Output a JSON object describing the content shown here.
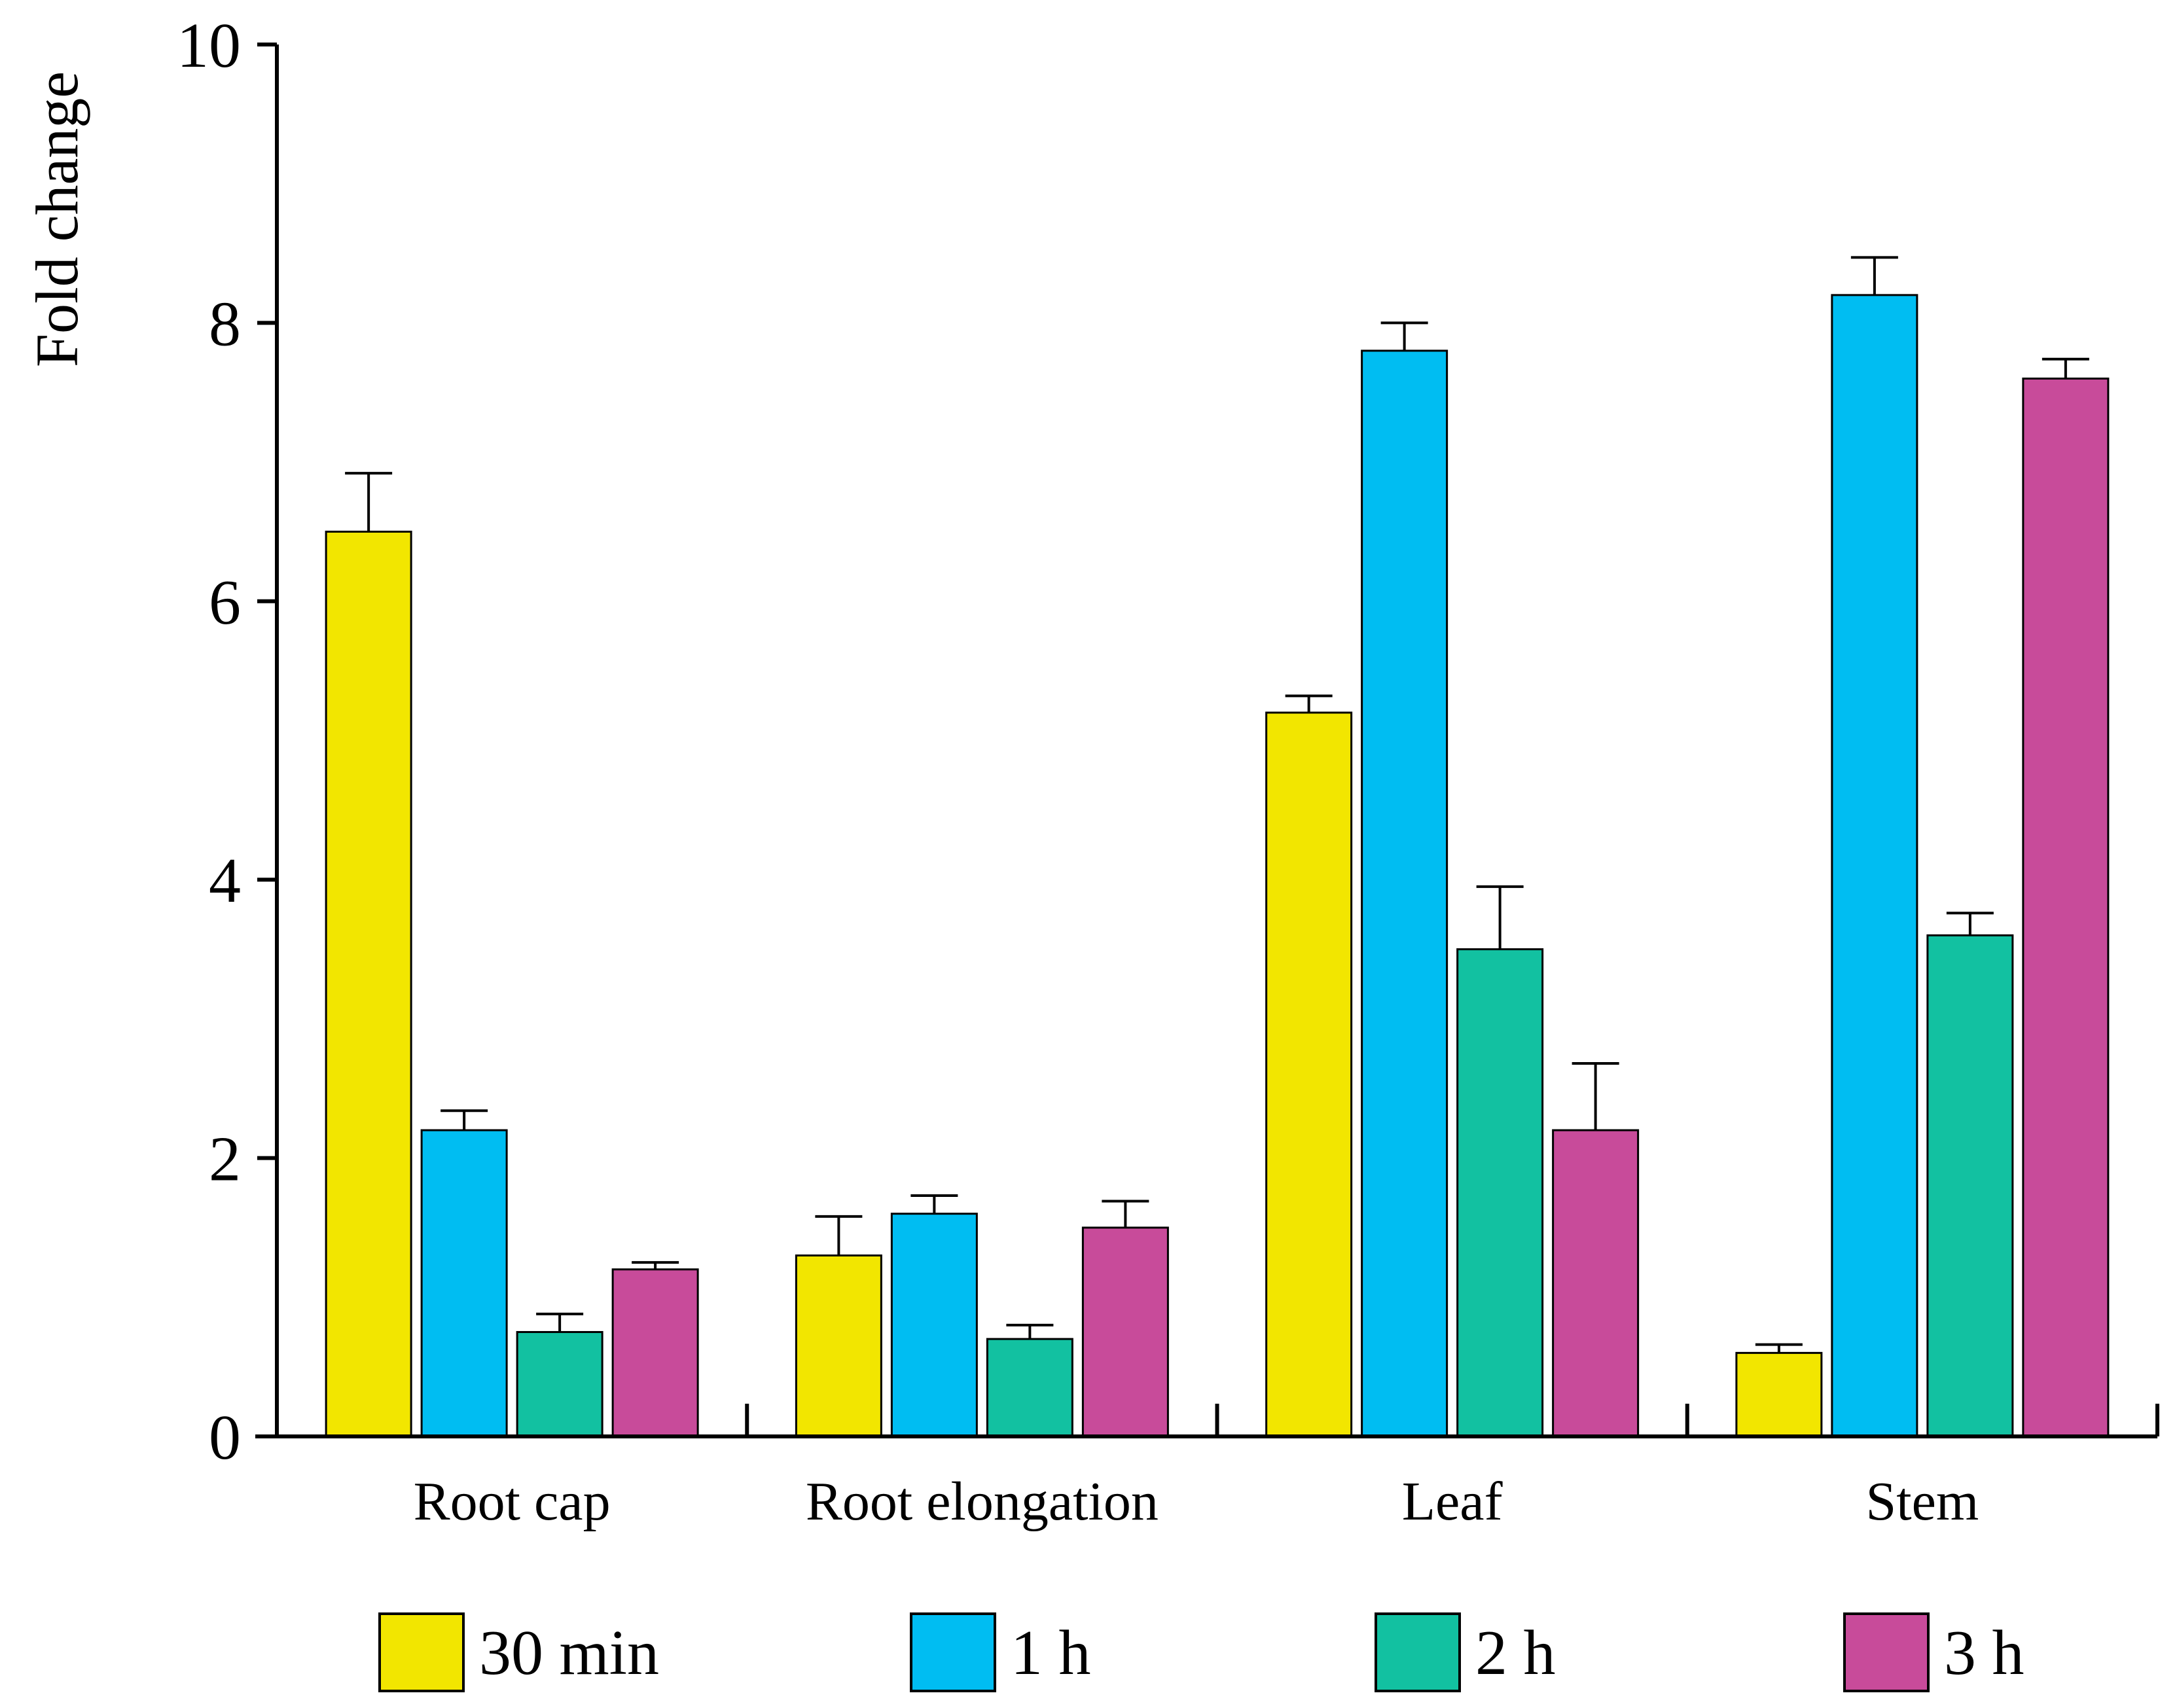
{
  "chart_data": {
    "type": "bar",
    "title": "",
    "xlabel": "",
    "ylabel": "Fold change",
    "ylim": [
      0,
      10
    ],
    "yticks": [
      0,
      2,
      4,
      6,
      8,
      10
    ],
    "grid": false,
    "legend_position": "bottom",
    "categories": [
      "Root cap",
      "Root elongation",
      "Leaf",
      "Stem"
    ],
    "series": [
      {
        "name": "30 min",
        "color": "#F2E600",
        "values": [
          6.5,
          1.3,
          5.2,
          0.6
        ],
        "errors": [
          0.42,
          0.28,
          0.12,
          0.06
        ]
      },
      {
        "name": "1 h",
        "color": "#00BDF2",
        "values": [
          2.2,
          1.6,
          7.8,
          8.2
        ],
        "errors": [
          0.14,
          0.13,
          0.2,
          0.27
        ]
      },
      {
        "name": "2 h",
        "color": "#12C1A1",
        "values": [
          0.75,
          0.7,
          3.5,
          3.6
        ],
        "errors": [
          0.13,
          0.1,
          0.45,
          0.16
        ]
      },
      {
        "name": "3 h",
        "color": "#C84B9A",
        "values": [
          1.2,
          1.5,
          2.2,
          7.6
        ],
        "errors": [
          0.05,
          0.19,
          0.48,
          0.14
        ]
      }
    ]
  }
}
